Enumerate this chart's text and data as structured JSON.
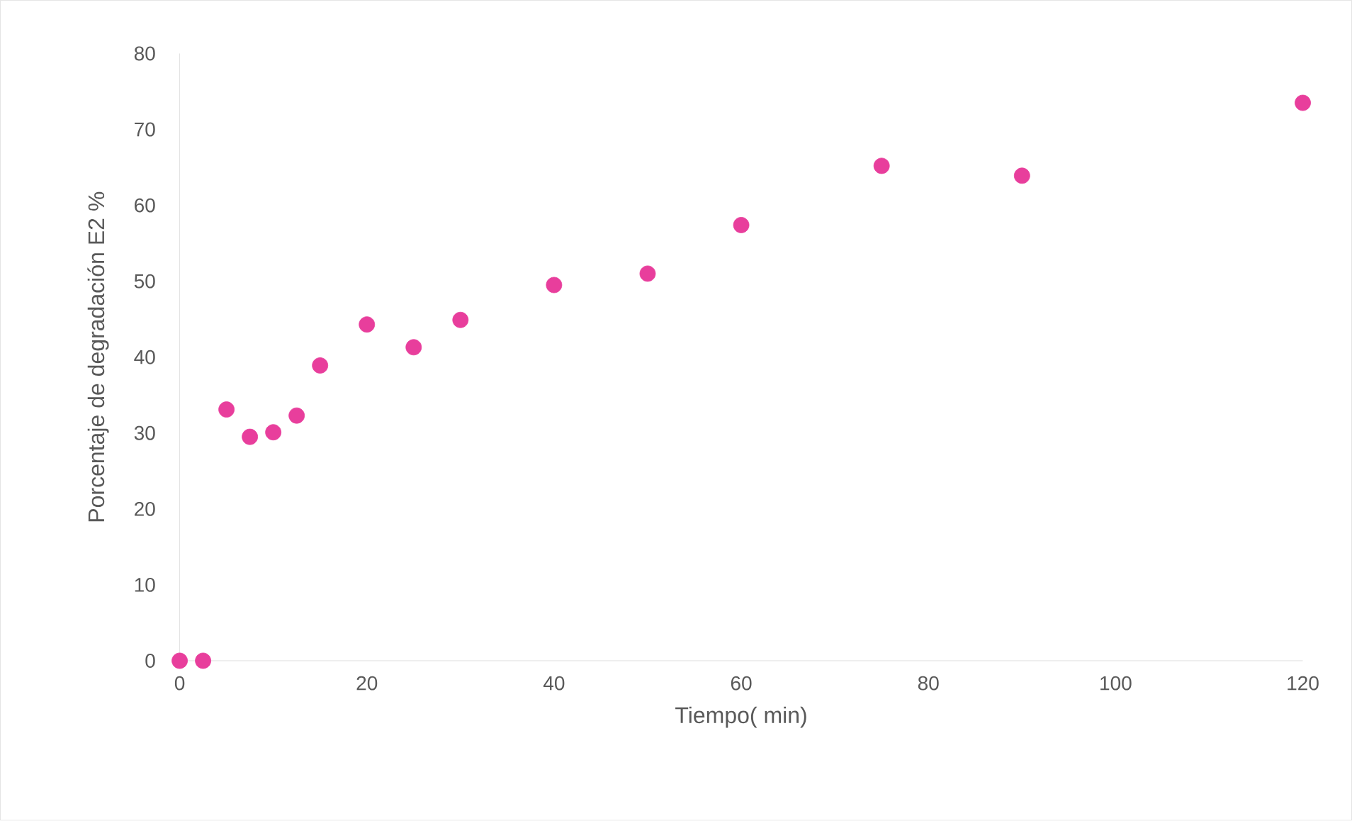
{
  "chart_data": {
    "type": "scatter",
    "xlabel": "Tiempo( min)",
    "ylabel": "Porcentaje de degradación E2 %",
    "x": [
      0,
      2.5,
      5,
      7.5,
      10,
      12.5,
      15,
      20,
      25,
      30,
      40,
      50,
      60,
      75,
      90,
      120
    ],
    "values": [
      0,
      0,
      33.1,
      29.5,
      30.1,
      32.3,
      38.9,
      44.3,
      41.3,
      44.9,
      49.5,
      51.0,
      57.4,
      65.2,
      63.9,
      73.5
    ],
    "color": "#e83e9c",
    "marker": "circle",
    "xlim": [
      0,
      120
    ],
    "ylim": [
      0,
      80
    ],
    "xticks": [
      0,
      20,
      40,
      60,
      80,
      100,
      120
    ],
    "yticks": [
      0,
      10,
      20,
      30,
      40,
      50,
      60,
      70,
      80
    ],
    "grid": false
  }
}
